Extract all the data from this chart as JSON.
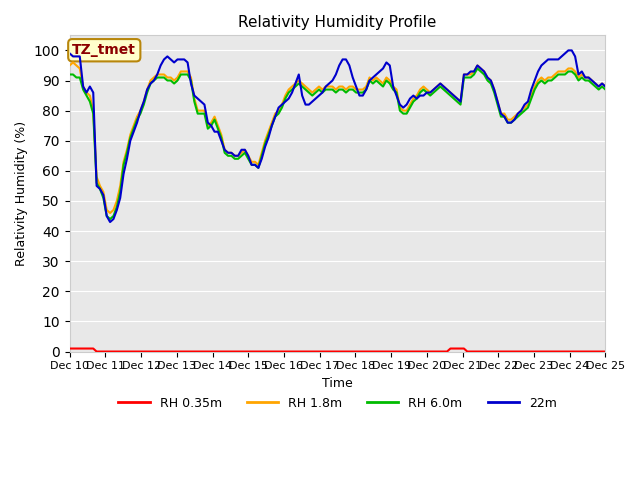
{
  "title": "Relativity Humidity Profile",
  "xlabel": "Time",
  "ylabel": "Relativity Humidity (%)",
  "ylim": [
    0,
    105
  ],
  "yticks": [
    0,
    10,
    20,
    30,
    40,
    50,
    60,
    70,
    80,
    90,
    100
  ],
  "bg_color": "#e8e8e8",
  "annotation_text": "TZ_tmet",
  "annotation_bg": "#ffffcc",
  "annotation_border": "#b8860b",
  "annotation_text_color": "#8b0000",
  "series_colors": {
    "RH 0.35m": "#ff0000",
    "RH 1.8m": "#ffa500",
    "RH 6.0m": "#00bb00",
    "22m": "#0000cc"
  },
  "x_labels": [
    "Dec 10",
    "Dec 11",
    "Dec 12",
    "Dec 13",
    "Dec 14",
    "Dec 15",
    "Dec 16",
    "Dec 17",
    "Dec 18",
    "Dec 19",
    "Dec 20",
    "Dec 21",
    "Dec 22",
    "Dec 23",
    "Dec 24",
    "Dec 25"
  ],
  "rh_035": [
    1,
    1,
    1,
    1,
    1,
    1,
    1,
    1,
    0,
    0,
    0,
    0,
    0,
    0,
    0,
    0,
    0,
    0,
    0,
    0,
    0,
    0,
    0,
    0,
    0,
    0,
    0,
    0,
    0,
    0,
    0,
    0,
    0,
    0,
    0,
    0,
    0,
    0,
    0,
    0,
    0,
    0,
    0,
    0,
    0,
    0,
    0,
    0,
    0,
    0,
    0,
    0,
    0,
    0,
    0,
    0,
    0,
    0,
    0,
    0,
    0,
    0,
    0,
    0,
    0,
    0,
    0,
    0,
    0,
    0,
    0,
    0,
    0,
    0,
    0,
    0,
    0,
    0,
    0,
    0,
    0,
    0,
    0,
    0,
    0,
    0,
    0,
    0,
    0,
    0,
    0,
    0,
    0,
    0,
    0,
    0,
    0,
    0,
    0,
    0,
    0,
    0,
    0,
    0,
    0,
    0,
    0,
    0,
    0,
    0,
    0,
    0,
    0,
    1,
    1,
    1,
    1,
    1,
    0,
    0,
    0,
    0,
    0,
    0,
    0,
    0,
    0,
    0,
    0,
    0,
    0,
    0,
    0,
    0,
    0,
    0,
    0,
    0,
    0,
    0,
    0,
    0,
    0,
    0,
    0,
    0,
    0,
    0,
    0,
    0,
    0,
    0,
    0,
    0,
    0,
    0,
    0,
    0,
    0,
    0
  ],
  "rh_18": [
    95,
    96,
    95,
    94,
    88,
    86,
    85,
    80,
    58,
    55,
    53,
    47,
    46,
    47,
    50,
    55,
    63,
    67,
    72,
    75,
    78,
    80,
    83,
    87,
    90,
    91,
    92,
    92,
    92,
    91,
    91,
    90,
    91,
    93,
    93,
    93,
    91,
    84,
    80,
    80,
    80,
    75,
    76,
    78,
    75,
    72,
    67,
    66,
    66,
    65,
    65,
    66,
    67,
    65,
    63,
    63,
    62,
    66,
    70,
    73,
    76,
    79,
    80,
    82,
    85,
    87,
    88,
    89,
    90,
    89,
    88,
    87,
    86,
    87,
    88,
    87,
    88,
    88,
    88,
    87,
    88,
    88,
    87,
    88,
    88,
    87,
    87,
    87,
    88,
    91,
    90,
    91,
    90,
    89,
    91,
    90,
    88,
    87,
    81,
    80,
    80,
    82,
    84,
    85,
    87,
    88,
    87,
    86,
    87,
    88,
    89,
    88,
    87,
    86,
    85,
    84,
    83,
    92,
    92,
    92,
    93,
    95,
    94,
    93,
    91,
    90,
    87,
    83,
    79,
    79,
    77,
    77,
    78,
    79,
    80,
    81,
    82,
    85,
    88,
    90,
    91,
    90,
    91,
    91,
    92,
    93,
    93,
    93,
    94,
    94,
    93,
    91,
    92,
    91,
    91,
    90,
    89,
    88,
    89,
    88
  ],
  "rh_60": [
    92,
    92,
    91,
    91,
    87,
    85,
    83,
    79,
    56,
    54,
    51,
    45,
    44,
    45,
    48,
    53,
    62,
    66,
    71,
    74,
    77,
    79,
    82,
    86,
    89,
    90,
    91,
    91,
    91,
    90,
    90,
    89,
    90,
    92,
    92,
    92,
    90,
    83,
    79,
    79,
    79,
    74,
    75,
    77,
    74,
    71,
    66,
    65,
    65,
    64,
    64,
    65,
    66,
    64,
    62,
    62,
    61,
    65,
    69,
    72,
    75,
    78,
    79,
    81,
    84,
    86,
    87,
    88,
    89,
    88,
    87,
    86,
    85,
    86,
    87,
    86,
    87,
    87,
    87,
    86,
    87,
    87,
    86,
    87,
    87,
    86,
    86,
    86,
    87,
    90,
    89,
    90,
    89,
    88,
    90,
    89,
    87,
    86,
    80,
    79,
    79,
    81,
    83,
    84,
    86,
    87,
    86,
    85,
    86,
    87,
    88,
    87,
    86,
    85,
    84,
    83,
    82,
    91,
    91,
    91,
    92,
    94,
    93,
    92,
    90,
    89,
    86,
    82,
    78,
    78,
    76,
    76,
    77,
    78,
    79,
    80,
    81,
    84,
    87,
    89,
    90,
    89,
    90,
    90,
    91,
    92,
    92,
    92,
    93,
    93,
    92,
    90,
    91,
    90,
    90,
    89,
    88,
    87,
    88,
    87
  ],
  "rh_22m": [
    99,
    98,
    98,
    98,
    88,
    86,
    88,
    86,
    55,
    54,
    52,
    45,
    43,
    44,
    47,
    51,
    59,
    64,
    70,
    73,
    76,
    80,
    83,
    87,
    89,
    90,
    92,
    95,
    97,
    98,
    97,
    96,
    97,
    97,
    97,
    96,
    89,
    85,
    84,
    83,
    82,
    76,
    75,
    73,
    73,
    70,
    67,
    66,
    66,
    65,
    65,
    67,
    67,
    65,
    62,
    62,
    61,
    64,
    68,
    71,
    75,
    78,
    81,
    82,
    83,
    84,
    86,
    89,
    92,
    85,
    82,
    82,
    83,
    84,
    85,
    86,
    88,
    89,
    90,
    92,
    95,
    97,
    97,
    95,
    91,
    88,
    85,
    85,
    87,
    90,
    91,
    92,
    93,
    94,
    96,
    95,
    88,
    85,
    82,
    81,
    82,
    84,
    85,
    84,
    85,
    85,
    86,
    86,
    87,
    88,
    89,
    88,
    87,
    86,
    85,
    84,
    83,
    92,
    92,
    93,
    93,
    95,
    94,
    93,
    91,
    90,
    87,
    83,
    79,
    78,
    76,
    76,
    77,
    79,
    80,
    82,
    83,
    87,
    90,
    93,
    95,
    96,
    97,
    97,
    97,
    97,
    98,
    99,
    100,
    100,
    98,
    92,
    93,
    91,
    91,
    90,
    89,
    88,
    89,
    88
  ]
}
